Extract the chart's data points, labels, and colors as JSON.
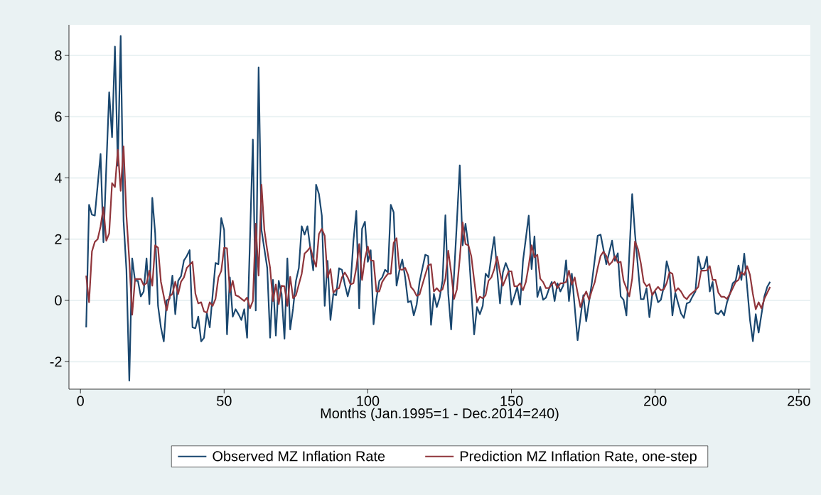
{
  "chart_data": {
    "type": "line",
    "xlabel": "Months (Jan.1995=1 - Dec.2014=240)",
    "xlim": [
      -4,
      254
    ],
    "ylim": [
      -2.9,
      9.0
    ],
    "xticks": [
      0,
      50,
      100,
      150,
      200,
      250
    ],
    "yticks": [
      -2,
      0,
      2,
      4,
      6,
      8
    ],
    "grid": "y",
    "legend": "bottom",
    "marker": "none",
    "line_style": "solid",
    "series": [
      {
        "name": "Observed MZ Inflation Rate",
        "color": "#1a476f",
        "x": [
          2,
          3,
          4,
          5,
          7,
          8,
          10,
          11,
          12,
          13,
          14,
          15,
          16,
          17,
          18,
          19,
          20,
          21,
          22,
          23,
          24,
          25,
          26,
          27,
          28,
          29,
          30,
          31,
          32,
          33,
          34,
          35,
          36,
          37,
          38,
          39,
          40,
          41,
          42,
          43,
          44,
          45,
          47,
          48,
          49,
          50,
          51,
          52,
          53,
          54,
          55,
          56,
          57,
          58,
          60,
          61,
          62,
          63,
          64,
          65,
          66,
          67,
          68,
          69,
          70,
          71,
          72,
          73,
          74,
          75,
          76,
          77,
          78,
          79,
          81,
          82,
          83,
          84,
          85,
          86,
          87,
          88,
          89,
          90,
          91,
          92,
          93,
          94,
          95,
          96,
          97,
          98,
          99,
          100,
          101,
          102,
          103,
          104,
          105,
          106,
          107,
          108,
          109,
          110,
          111,
          112,
          113,
          114,
          115,
          116,
          117,
          118,
          120,
          121,
          122,
          123,
          124,
          125,
          126,
          127,
          128,
          129,
          131,
          132,
          133,
          134,
          135,
          137,
          138,
          139,
          140,
          141,
          142,
          143,
          144,
          146,
          147,
          148,
          149,
          150,
          151,
          152,
          153,
          154,
          155,
          156,
          157,
          158,
          159,
          160,
          161,
          162,
          163,
          164,
          165,
          166,
          167,
          168,
          169,
          170,
          171,
          173,
          175,
          176,
          178,
          180,
          181,
          183,
          185,
          186,
          187,
          188,
          189,
          190,
          192,
          193,
          195,
          196,
          197,
          198,
          199,
          200,
          201,
          202,
          203,
          204,
          205,
          206,
          207,
          208,
          209,
          210,
          211,
          212,
          213,
          214,
          215,
          216,
          217,
          218,
          219,
          220,
          221,
          222,
          223,
          224,
          225,
          226,
          227,
          228,
          229,
          230,
          231,
          233,
          234,
          235,
          236,
          237,
          238,
          239,
          240
        ],
        "values": [
          -0.88,
          3.12,
          2.8,
          2.77,
          4.78,
          1.9,
          6.8,
          5.33,
          8.29,
          4.4,
          8.64,
          2.6,
          1.0,
          -2.62,
          1.37,
          0.64,
          0.64,
          0.13,
          0.29,
          1.37,
          -0.12,
          3.35,
          2.2,
          -0.18,
          -0.88,
          -1.34,
          0.0,
          0.05,
          0.81,
          -0.45,
          0.64,
          0.79,
          1.3,
          1.45,
          1.64,
          -0.88,
          -0.91,
          -0.53,
          -1.34,
          -1.22,
          -0.41,
          -0.88,
          1.22,
          1.18,
          2.69,
          2.3,
          -1.11,
          0.75,
          -0.53,
          -0.29,
          -0.45,
          -0.64,
          -0.29,
          -1.22,
          5.25,
          -0.33,
          7.61,
          2.3,
          1.68,
          1.06,
          -1.22,
          0.67,
          -1.15,
          0.64,
          0.21,
          -1.25,
          1.37,
          -0.95,
          -0.26,
          0.64,
          1.06,
          2.42,
          2.15,
          2.42,
          0.98,
          3.78,
          3.47,
          2.77,
          -0.18,
          1.29,
          -0.64,
          0.21,
          0.17,
          1.05,
          1.0,
          0.52,
          0.13,
          0.52,
          1.95,
          2.92,
          -0.26,
          2.34,
          2.57,
          1.26,
          1.64,
          -0.78,
          0.05,
          0.64,
          0.75,
          1.0,
          0.92,
          3.12,
          2.88,
          0.48,
          0.98,
          1.33,
          0.75,
          -0.06,
          -0.02,
          -0.49,
          -0.14,
          0.6,
          1.49,
          1.45,
          -0.8,
          0.21,
          -0.22,
          0.09,
          0.64,
          2.78,
          0.21,
          -0.95,
          2.57,
          4.41,
          1.8,
          2.5,
          1.8,
          -1.11,
          -0.22,
          -0.45,
          -0.18,
          0.87,
          0.75,
          1.45,
          2.07,
          -0.1,
          0.91,
          1.22,
          0.98,
          -0.14,
          0.13,
          0.44,
          -0.14,
          1.29,
          2.03,
          2.77,
          1.02,
          2.09,
          0.11,
          0.44,
          0.02,
          0.09,
          0.36,
          0.6,
          -0.02,
          0.56,
          0.29,
          0.48,
          1.31,
          -0.02,
          0.87,
          -1.3,
          0.17,
          -0.68,
          0.6,
          2.11,
          2.15,
          1.18,
          1.95,
          1.29,
          1.54,
          0.13,
          0.02,
          -0.49,
          3.47,
          2.15,
          0.04,
          0.04,
          0.4,
          -0.55,
          0.21,
          0.29,
          -0.06,
          0.02,
          0.44,
          1.28,
          0.91,
          -0.49,
          0.25,
          -0.1,
          -0.43,
          -0.57,
          -0.1,
          -0.06,
          0.13,
          0.29,
          1.43,
          1.02,
          1.06,
          1.43,
          0.29,
          0.6,
          -0.41,
          -0.45,
          -0.33,
          -0.49,
          -0.06,
          0.21,
          0.56,
          0.64,
          1.14,
          0.67,
          1.53,
          -0.64,
          -1.33,
          -0.45,
          -1.05,
          -0.45,
          0.13,
          0.44,
          0.61
        ]
      },
      {
        "name": "Prediction MZ Inflation Rate, one-step",
        "color": "#90353b",
        "x": [
          2,
          3,
          4,
          5,
          6,
          7,
          8,
          9,
          10,
          11,
          12,
          13,
          14,
          15,
          16,
          17,
          18,
          19,
          21,
          22,
          23,
          24,
          25,
          26,
          27,
          28,
          30,
          31,
          32,
          33,
          34,
          35,
          36,
          37,
          39,
          40,
          41,
          42,
          43,
          44,
          45,
          46,
          47,
          48,
          49,
          50,
          51,
          52,
          53,
          54,
          55,
          57,
          58,
          59,
          60,
          61,
          62,
          63,
          64,
          65,
          66,
          67,
          68,
          69,
          70,
          71,
          72,
          73,
          74,
          75,
          76,
          77,
          78,
          79,
          80,
          81,
          82,
          83,
          84,
          85,
          86,
          87,
          88,
          89,
          90,
          91,
          92,
          93,
          94,
          95,
          96,
          97,
          98,
          99,
          100,
          101,
          102,
          103,
          104,
          105,
          106,
          107,
          108,
          109,
          110,
          111,
          112,
          113,
          114,
          115,
          116,
          117,
          118,
          120,
          121,
          122,
          123,
          124,
          125,
          126,
          127,
          128,
          129,
          130,
          131,
          132,
          133,
          134,
          135,
          136,
          137,
          138,
          139,
          140,
          141,
          142,
          143,
          144,
          145,
          146,
          147,
          148,
          149,
          150,
          151,
          152,
          153,
          154,
          155,
          156,
          157,
          158,
          159,
          160,
          161,
          162,
          163,
          164,
          165,
          166,
          167,
          168,
          169,
          170,
          171,
          172,
          173,
          174,
          175,
          176,
          177,
          178,
          179,
          180,
          181,
          182,
          183,
          184,
          185,
          186,
          187,
          188,
          189,
          190,
          191,
          192,
          193,
          194,
          195,
          196,
          197,
          198,
          199,
          200,
          201,
          202,
          203,
          204,
          205,
          206,
          207,
          208,
          209,
          210,
          211,
          212,
          213,
          214,
          215,
          216,
          217,
          218,
          219,
          220,
          221,
          222,
          223,
          224,
          225,
          226,
          227,
          228,
          229,
          230,
          231,
          232,
          233,
          234,
          235,
          236,
          237,
          238,
          239,
          240
        ],
        "values": [
          0.81,
          -0.06,
          1.6,
          1.91,
          2.0,
          2.42,
          3.04,
          1.95,
          2.19,
          3.83,
          3.7,
          4.92,
          3.58,
          5.03,
          2.77,
          1.3,
          -0.47,
          0.7,
          0.7,
          0.5,
          0.56,
          0.97,
          0.48,
          1.8,
          1.72,
          0.61,
          -0.33,
          0.13,
          0.21,
          0.61,
          0.21,
          0.61,
          0.75,
          1.06,
          1.26,
          0.22,
          -0.1,
          -0.06,
          -0.36,
          -0.4,
          -0.06,
          -0.18,
          0.05,
          0.75,
          0.96,
          1.72,
          1.7,
          0.26,
          0.64,
          0.17,
          0.13,
          -0.02,
          0.09,
          -0.26,
          -0.02,
          2.5,
          0.81,
          3.78,
          2.3,
          1.64,
          1.06,
          -0.02,
          0.52,
          -0.12,
          0.48,
          0.46,
          -0.18,
          0.77,
          0.07,
          0.17,
          0.52,
          0.87,
          1.53,
          1.62,
          1.74,
          1.37,
          1.1,
          2.17,
          2.34,
          2.11,
          0.75,
          1.02,
          0.25,
          0.36,
          0.4,
          0.75,
          0.91,
          0.75,
          0.52,
          0.56,
          1.06,
          1.84,
          0.67,
          1.37,
          1.76,
          1.31,
          1.29,
          0.29,
          0.29,
          0.6,
          0.75,
          0.87,
          0.87,
          1.88,
          2.03,
          1.02,
          1.0,
          1.06,
          0.83,
          0.44,
          0.33,
          0.15,
          0.19,
          0.84,
          1.14,
          1.18,
          0.29,
          0.4,
          0.29,
          0.36,
          0.71,
          1.62,
          0.91,
          0.05,
          0.36,
          1.37,
          2.55,
          1.84,
          1.8,
          1.45,
          0.67,
          -0.06,
          0.12,
          0.07,
          0.17,
          0.64,
          0.75,
          1.02,
          1.43,
          0.91,
          0.48,
          0.71,
          0.95,
          0.95,
          0.46,
          0.46,
          0.56,
          0.33,
          0.6,
          1.14,
          1.8,
          1.41,
          1.49,
          0.71,
          0.6,
          0.4,
          0.4,
          0.52,
          0.61,
          0.4,
          0.56,
          0.56,
          0.6,
          0.97,
          0.52,
          0.75,
          0.25,
          -0.22,
          0.09,
          0.29,
          0.02,
          0.33,
          0.6,
          1.06,
          1.45,
          1.59,
          1.45,
          1.16,
          1.26,
          1.45,
          1.23,
          1.26,
          0.64,
          0.4,
          0.13,
          0.71,
          1.93,
          1.68,
          1.22,
          0.6,
          0.46,
          0.53,
          0.17,
          0.33,
          0.44,
          0.33,
          0.36,
          0.56,
          0.92,
          0.87,
          0.29,
          0.4,
          0.29,
          0.12,
          0.04,
          0.17,
          0.25,
          0.33,
          0.44,
          0.97,
          0.97,
          0.98,
          1.12,
          0.67,
          0.67,
          0.25,
          0.12,
          0.12,
          0.05,
          0.21,
          0.4,
          0.6,
          0.67,
          0.92,
          0.83,
          1.12,
          0.83,
          0.21,
          -0.29,
          -0.06,
          -0.26,
          0.05,
          0.25,
          0.44
        ]
      }
    ]
  }
}
